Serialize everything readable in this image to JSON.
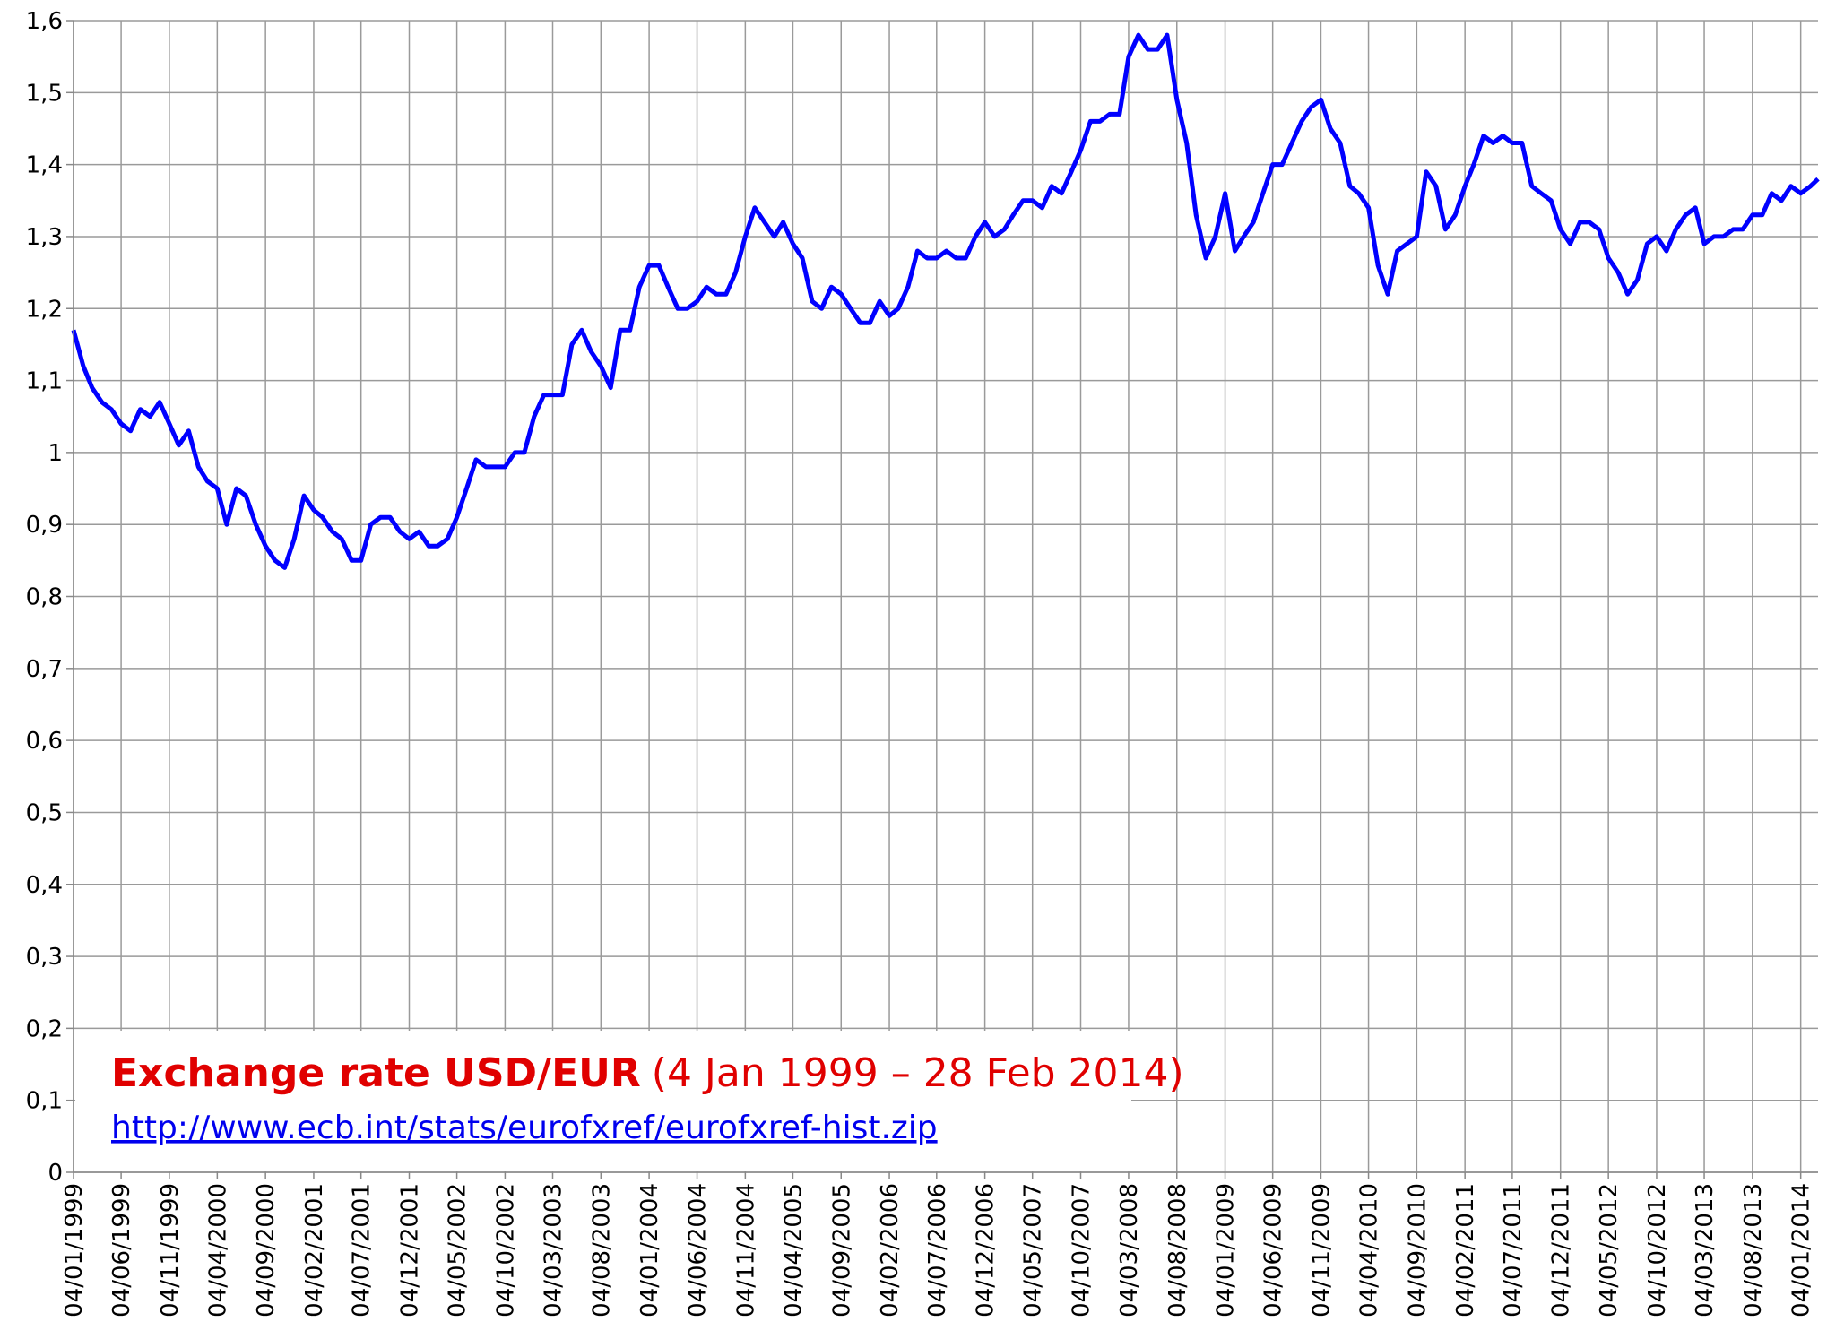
{
  "chart_data": {
    "type": "line",
    "title": "Exchange rate USD/EUR",
    "subtitle": "(4 Jan 1999 – 28 Feb 2014)",
    "source": "http://www.ecb.int/stats/eurofxref/eurofxref-hist.zip",
    "color": "#0000ff",
    "grid": true,
    "xlim": [
      "04/01/1999",
      "28/02/2014"
    ],
    "ylim": [
      0,
      1.6
    ],
    "yticks": [
      0,
      {
        "value": 0.1,
        "label": "0,1"
      },
      {
        "value": 0.2,
        "label": "0,2"
      },
      {
        "value": 0.3,
        "label": "0,3"
      },
      {
        "value": 0.4,
        "label": "0,4"
      },
      {
        "value": 0.5,
        "label": "0,5"
      },
      {
        "value": 0.6,
        "label": "0,6"
      },
      {
        "value": 0.7,
        "label": "0,7"
      },
      {
        "value": 0.8,
        "label": "0,8"
      },
      {
        "value": 0.9,
        "label": "0,9"
      },
      1,
      {
        "value": 1.1,
        "label": "1,1"
      },
      {
        "value": 1.2,
        "label": "1,2"
      },
      {
        "value": 1.3,
        "label": "1,3"
      },
      {
        "value": 1.4,
        "label": "1,4"
      },
      {
        "value": 1.5,
        "label": "1,5"
      },
      {
        "value": 1.6,
        "label": "1,6"
      }
    ],
    "xticks": [
      "04/01/1999",
      "04/06/1999",
      "04/11/1999",
      "04/04/2000",
      "04/09/2000",
      "04/02/2001",
      "04/07/2001",
      "04/12/2001",
      "04/05/2002",
      "04/10/2002",
      "04/03/2003",
      "04/08/2003",
      "04/01/2004",
      "04/06/2004",
      "04/11/2004",
      "04/04/2005",
      "04/09/2005",
      "04/02/2006",
      "04/07/2006",
      "04/12/2006",
      "04/05/2007",
      "04/10/2007",
      "04/03/2008",
      "04/08/2008",
      "04/01/2009",
      "04/06/2009",
      "04/11/2009",
      "04/04/2010",
      "04/09/2010",
      "04/02/2011",
      "04/07/2011",
      "04/12/2011",
      "04/05/2012",
      "04/10/2012",
      "04/03/2013",
      "04/08/2013",
      "04/01/2014"
    ],
    "x": [
      "04/01/1999",
      "04/02/1999",
      "04/03/1999",
      "04/04/1999",
      "04/05/1999",
      "04/06/1999",
      "04/07/1999",
      "04/08/1999",
      "04/09/1999",
      "04/10/1999",
      "04/11/1999",
      "04/12/1999",
      "04/01/2000",
      "04/02/2000",
      "04/03/2000",
      "04/04/2000",
      "04/05/2000",
      "04/06/2000",
      "04/07/2000",
      "04/08/2000",
      "04/09/2000",
      "04/10/2000",
      "04/11/2000",
      "04/12/2000",
      "04/01/2001",
      "04/02/2001",
      "04/03/2001",
      "04/04/2001",
      "04/05/2001",
      "04/06/2001",
      "04/07/2001",
      "04/08/2001",
      "04/09/2001",
      "04/10/2001",
      "04/11/2001",
      "04/12/2001",
      "04/01/2002",
      "04/02/2002",
      "04/03/2002",
      "04/04/2002",
      "04/05/2002",
      "04/06/2002",
      "04/07/2002",
      "04/08/2002",
      "04/09/2002",
      "04/10/2002",
      "04/11/2002",
      "04/12/2002",
      "04/01/2003",
      "04/02/2003",
      "04/03/2003",
      "04/04/2003",
      "04/05/2003",
      "04/06/2003",
      "04/07/2003",
      "04/08/2003",
      "04/09/2003",
      "04/10/2003",
      "04/11/2003",
      "04/12/2003",
      "04/01/2004",
      "04/02/2004",
      "04/03/2004",
      "04/04/2004",
      "04/05/2004",
      "04/06/2004",
      "04/07/2004",
      "04/08/2004",
      "04/09/2004",
      "04/10/2004",
      "04/11/2004",
      "04/12/2004",
      "04/01/2005",
      "04/02/2005",
      "04/03/2005",
      "04/04/2005",
      "04/05/2005",
      "04/06/2005",
      "04/07/2005",
      "04/08/2005",
      "04/09/2005",
      "04/10/2005",
      "04/11/2005",
      "04/12/2005",
      "04/01/2006",
      "04/02/2006",
      "04/03/2006",
      "04/04/2006",
      "04/05/2006",
      "04/06/2006",
      "04/07/2006",
      "04/08/2006",
      "04/09/2006",
      "04/10/2006",
      "04/11/2006",
      "04/12/2006",
      "04/01/2007",
      "04/02/2007",
      "04/03/2007",
      "04/04/2007",
      "04/05/2007",
      "04/06/2007",
      "04/07/2007",
      "04/08/2007",
      "04/09/2007",
      "04/10/2007",
      "04/11/2007",
      "04/12/2007",
      "04/01/2008",
      "04/02/2008",
      "04/03/2008",
      "04/04/2008",
      "04/05/2008",
      "04/06/2008",
      "04/07/2008",
      "04/08/2008",
      "04/09/2008",
      "04/10/2008",
      "04/11/2008",
      "04/12/2008",
      "04/01/2009",
      "04/02/2009",
      "04/03/2009",
      "04/04/2009",
      "04/05/2009",
      "04/06/2009",
      "04/07/2009",
      "04/08/2009",
      "04/09/2009",
      "04/10/2009",
      "04/11/2009",
      "04/12/2009",
      "04/01/2010",
      "04/02/2010",
      "04/03/2010",
      "04/04/2010",
      "04/05/2010",
      "04/06/2010",
      "04/07/2010",
      "04/08/2010",
      "04/09/2010",
      "04/10/2010",
      "04/11/2010",
      "04/12/2010",
      "04/01/2011",
      "04/02/2011",
      "04/03/2011",
      "04/04/2011",
      "04/05/2011",
      "04/06/2011",
      "04/07/2011",
      "04/08/2011",
      "04/09/2011",
      "04/10/2011",
      "04/11/2011",
      "04/12/2011",
      "04/01/2012",
      "04/02/2012",
      "04/03/2012",
      "04/04/2012",
      "04/05/2012",
      "04/06/2012",
      "04/07/2012",
      "04/08/2012",
      "04/09/2012",
      "04/10/2012",
      "04/11/2012",
      "04/12/2012",
      "04/01/2013",
      "04/02/2013",
      "04/03/2013",
      "04/04/2013",
      "04/05/2013",
      "04/06/2013",
      "04/07/2013",
      "04/08/2013",
      "04/09/2013",
      "04/10/2013",
      "04/11/2013",
      "04/12/2013",
      "04/01/2014",
      "04/02/2014",
      "28/02/2014"
    ],
    "values": [
      1.17,
      1.12,
      1.09,
      1.07,
      1.06,
      1.04,
      1.03,
      1.06,
      1.05,
      1.07,
      1.04,
      1.01,
      1.03,
      0.98,
      0.96,
      0.95,
      0.9,
      0.95,
      0.94,
      0.9,
      0.87,
      0.85,
      0.84,
      0.88,
      0.94,
      0.92,
      0.91,
      0.89,
      0.88,
      0.85,
      0.85,
      0.9,
      0.91,
      0.91,
      0.89,
      0.88,
      0.89,
      0.87,
      0.87,
      0.88,
      0.91,
      0.95,
      0.99,
      0.98,
      0.98,
      0.98,
      1.0,
      1.0,
      1.05,
      1.08,
      1.08,
      1.08,
      1.15,
      1.17,
      1.14,
      1.12,
      1.09,
      1.17,
      1.17,
      1.23,
      1.26,
      1.26,
      1.23,
      1.2,
      1.2,
      1.21,
      1.23,
      1.22,
      1.22,
      1.25,
      1.3,
      1.34,
      1.32,
      1.3,
      1.32,
      1.29,
      1.27,
      1.21,
      1.2,
      1.23,
      1.22,
      1.2,
      1.18,
      1.18,
      1.21,
      1.19,
      1.2,
      1.23,
      1.28,
      1.27,
      1.27,
      1.28,
      1.27,
      1.27,
      1.3,
      1.32,
      1.3,
      1.31,
      1.33,
      1.35,
      1.35,
      1.34,
      1.37,
      1.36,
      1.39,
      1.42,
      1.46,
      1.46,
      1.47,
      1.47,
      1.55,
      1.58,
      1.56,
      1.56,
      1.58,
      1.49,
      1.43,
      1.33,
      1.27,
      1.3,
      1.36,
      1.28,
      1.3,
      1.32,
      1.36,
      1.4,
      1.4,
      1.43,
      1.46,
      1.48,
      1.49,
      1.45,
      1.43,
      1.37,
      1.36,
      1.34,
      1.26,
      1.22,
      1.28,
      1.29,
      1.3,
      1.39,
      1.37,
      1.31,
      1.33,
      1.37,
      1.4,
      1.44,
      1.43,
      1.44,
      1.43,
      1.43,
      1.37,
      1.36,
      1.35,
      1.31,
      1.29,
      1.32,
      1.32,
      1.31,
      1.27,
      1.25,
      1.22,
      1.24,
      1.29,
      1.3,
      1.28,
      1.31,
      1.33,
      1.34,
      1.29,
      1.3,
      1.3,
      1.31,
      1.31,
      1.33,
      1.33,
      1.36,
      1.35,
      1.37,
      1.36,
      1.37,
      1.38
    ]
  }
}
